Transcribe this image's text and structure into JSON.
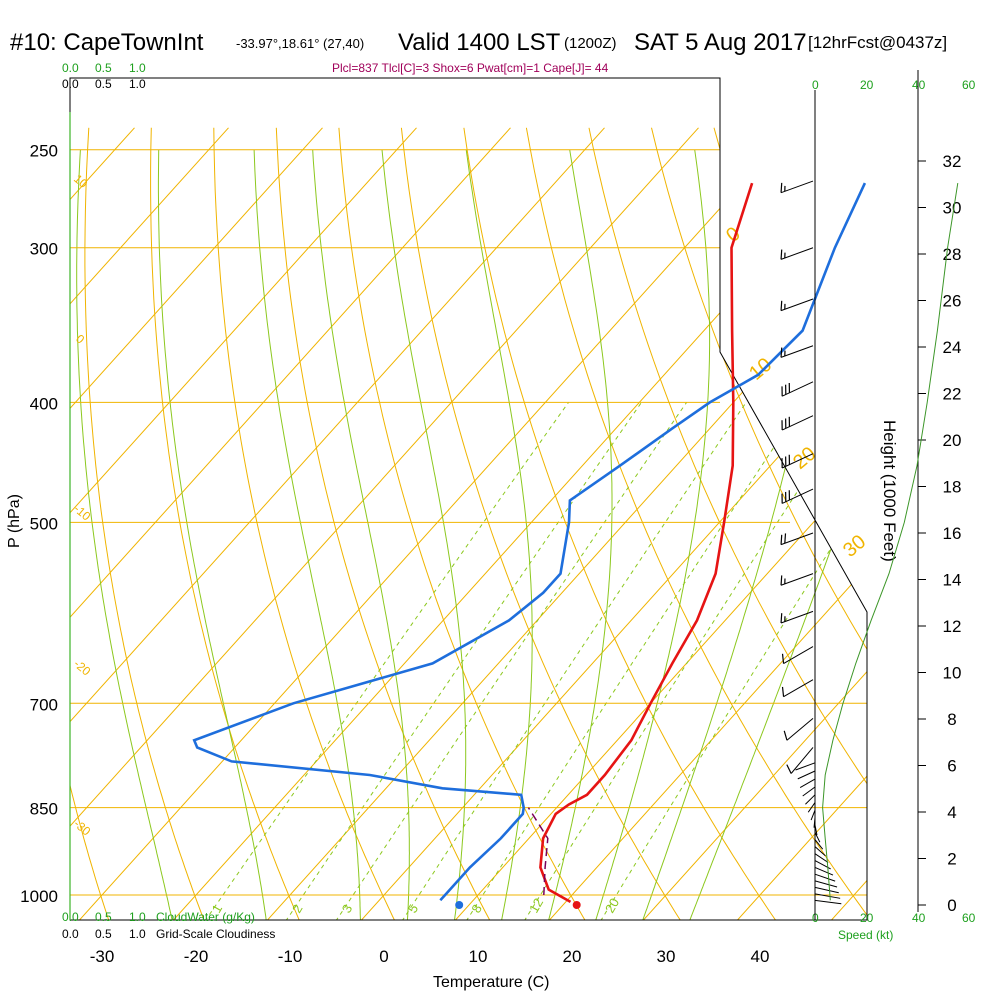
{
  "header": {
    "station": "#10: CapeTownInt",
    "coords": "-33.97°,18.61° (27,40)",
    "valid_main": "Valid 1400 LST",
    "valid_z": "(1200Z)",
    "date": "SAT 5 Aug 2017",
    "forecast": "[12hrFcst@0437z]"
  },
  "indices_text": "Plcl=837 Tlcl[C]=3 Shox=6 Pwat[cm]=1 Cape[J]= 44",
  "axes": {
    "y_label": "P (hPa)",
    "x_label": "Temperature (C)",
    "height_label": "Height (1000 Feet)",
    "speed_label": "Speed (kt)",
    "cloudwater_label": "CloudWater (g/Kg)",
    "cloudiness_label": "Grid-Scale Cloudiness"
  },
  "colors": {
    "isotherm": "#f0b400",
    "dry_adiabat": "#8cc81e",
    "moist_adiabat": "#8cc81e",
    "mixing_ratio": "#8cc81e",
    "temperature": "#e61414",
    "dewpoint": "#1e6edc",
    "parcel": "#78005a",
    "indices": "#a0005a",
    "green_label": "#1ea01e",
    "height_curve": "#3c9628"
  },
  "chart_data": {
    "type": "line",
    "title": "#10: CapeTownInt Valid 1400 LST (1200Z) SAT 5 Aug 2017",
    "xlabel": "Temperature (C)",
    "ylabel": "P (hPa)",
    "xlim": [
      -35,
      45
    ],
    "ylim": [
      1050,
      250
    ],
    "y_scale": "log",
    "pressure_ticks": [
      250,
      300,
      400,
      500,
      700,
      850,
      1000
    ],
    "temperature_ticks": [
      -30,
      -20,
      -10,
      0,
      10,
      20,
      30,
      40
    ],
    "height_ticks": [
      0,
      2,
      4,
      6,
      8,
      10,
      12,
      14,
      16,
      18,
      20,
      22,
      24,
      26,
      28,
      30,
      32
    ],
    "top_scale_ticks": [
      "0.0",
      "0.5",
      "1.0"
    ],
    "speed_ticks": [
      "0",
      "20",
      "40",
      "60"
    ],
    "isotherm_labels": [
      "0",
      "10",
      "20",
      "30"
    ],
    "dry_adiabat_labels": [
      "10",
      "0",
      "-10",
      "-20",
      "-30"
    ],
    "mixing_ratio_labels": [
      "1",
      "2",
      "3",
      "5",
      "8",
      "12",
      "20"
    ],
    "series": [
      {
        "name": "temperature",
        "points": [
          [
            1013,
            20.5
          ],
          [
            990,
            17
          ],
          [
            950,
            14
          ],
          [
            900,
            11.5
          ],
          [
            860,
            10.5
          ],
          [
            845,
            11
          ],
          [
            830,
            12
          ],
          [
            800,
            12
          ],
          [
            750,
            11.5
          ],
          [
            700,
            10
          ],
          [
            650,
            8.5
          ],
          [
            600,
            7
          ],
          [
            550,
            4.5
          ],
          [
            500,
            0.5
          ],
          [
            450,
            -4
          ],
          [
            400,
            -10
          ],
          [
            350,
            -17
          ],
          [
            300,
            -25
          ],
          [
            266,
            -29
          ]
        ]
      },
      {
        "name": "dewpoint",
        "points": [
          [
            1010,
            6.5
          ],
          [
            1000,
            6.5
          ],
          [
            950,
            6.5
          ],
          [
            900,
            7
          ],
          [
            860,
            7
          ],
          [
            850,
            6.5
          ],
          [
            830,
            5
          ],
          [
            820,
            -4
          ],
          [
            800,
            -13
          ],
          [
            780,
            -29
          ],
          [
            760,
            -34
          ],
          [
            750,
            -35
          ],
          [
            700,
            -28
          ],
          [
            650,
            -17
          ],
          [
            600,
            -13
          ],
          [
            570,
            -12
          ],
          [
            550,
            -12
          ],
          [
            500,
            -16
          ],
          [
            480,
            -18
          ],
          [
            450,
            -16
          ],
          [
            420,
            -14
          ],
          [
            400,
            -12.5
          ],
          [
            380,
            -10
          ],
          [
            350,
            -9.5
          ],
          [
            300,
            -14
          ],
          [
            266,
            -17
          ]
        ]
      },
      {
        "name": "parcel",
        "points": [
          [
            1000,
            17
          ],
          [
            950,
            14.5
          ],
          [
            900,
            12
          ],
          [
            850,
            7
          ]
        ]
      }
    ],
    "surface_temperature": 20.5,
    "surface_dewpoint": 8.0,
    "wind_barbs": [
      {
        "p": 265,
        "dir": 290,
        "kt": 15
      },
      {
        "p": 300,
        "dir": 290,
        "kt": 15
      },
      {
        "p": 330,
        "dir": 290,
        "kt": 15
      },
      {
        "p": 360,
        "dir": 290,
        "kt": 15
      },
      {
        "p": 385,
        "dir": 295,
        "kt": 30
      },
      {
        "p": 410,
        "dir": 295,
        "kt": 30
      },
      {
        "p": 440,
        "dir": 295,
        "kt": 30
      },
      {
        "p": 470,
        "dir": 295,
        "kt": 30
      },
      {
        "p": 510,
        "dir": 290,
        "kt": 20
      },
      {
        "p": 550,
        "dir": 290,
        "kt": 15
      },
      {
        "p": 590,
        "dir": 290,
        "kt": 15
      },
      {
        "p": 630,
        "dir": 300,
        "kt": 10
      },
      {
        "p": 670,
        "dir": 300,
        "kt": 10
      },
      {
        "p": 720,
        "dir": 310,
        "kt": 10
      },
      {
        "p": 760,
        "dir": 320,
        "kt": 10
      }
    ],
    "speed_profile": [
      [
        1010,
        6
      ],
      [
        950,
        5
      ],
      [
        900,
        4
      ],
      [
        850,
        3
      ],
      [
        800,
        4
      ],
      [
        750,
        7
      ],
      [
        700,
        11
      ],
      [
        650,
        16
      ],
      [
        600,
        22
      ],
      [
        550,
        29
      ],
      [
        500,
        35
      ],
      [
        450,
        40
      ],
      [
        400,
        44
      ],
      [
        350,
        48
      ],
      [
        300,
        52
      ],
      [
        266,
        56
      ]
    ]
  }
}
